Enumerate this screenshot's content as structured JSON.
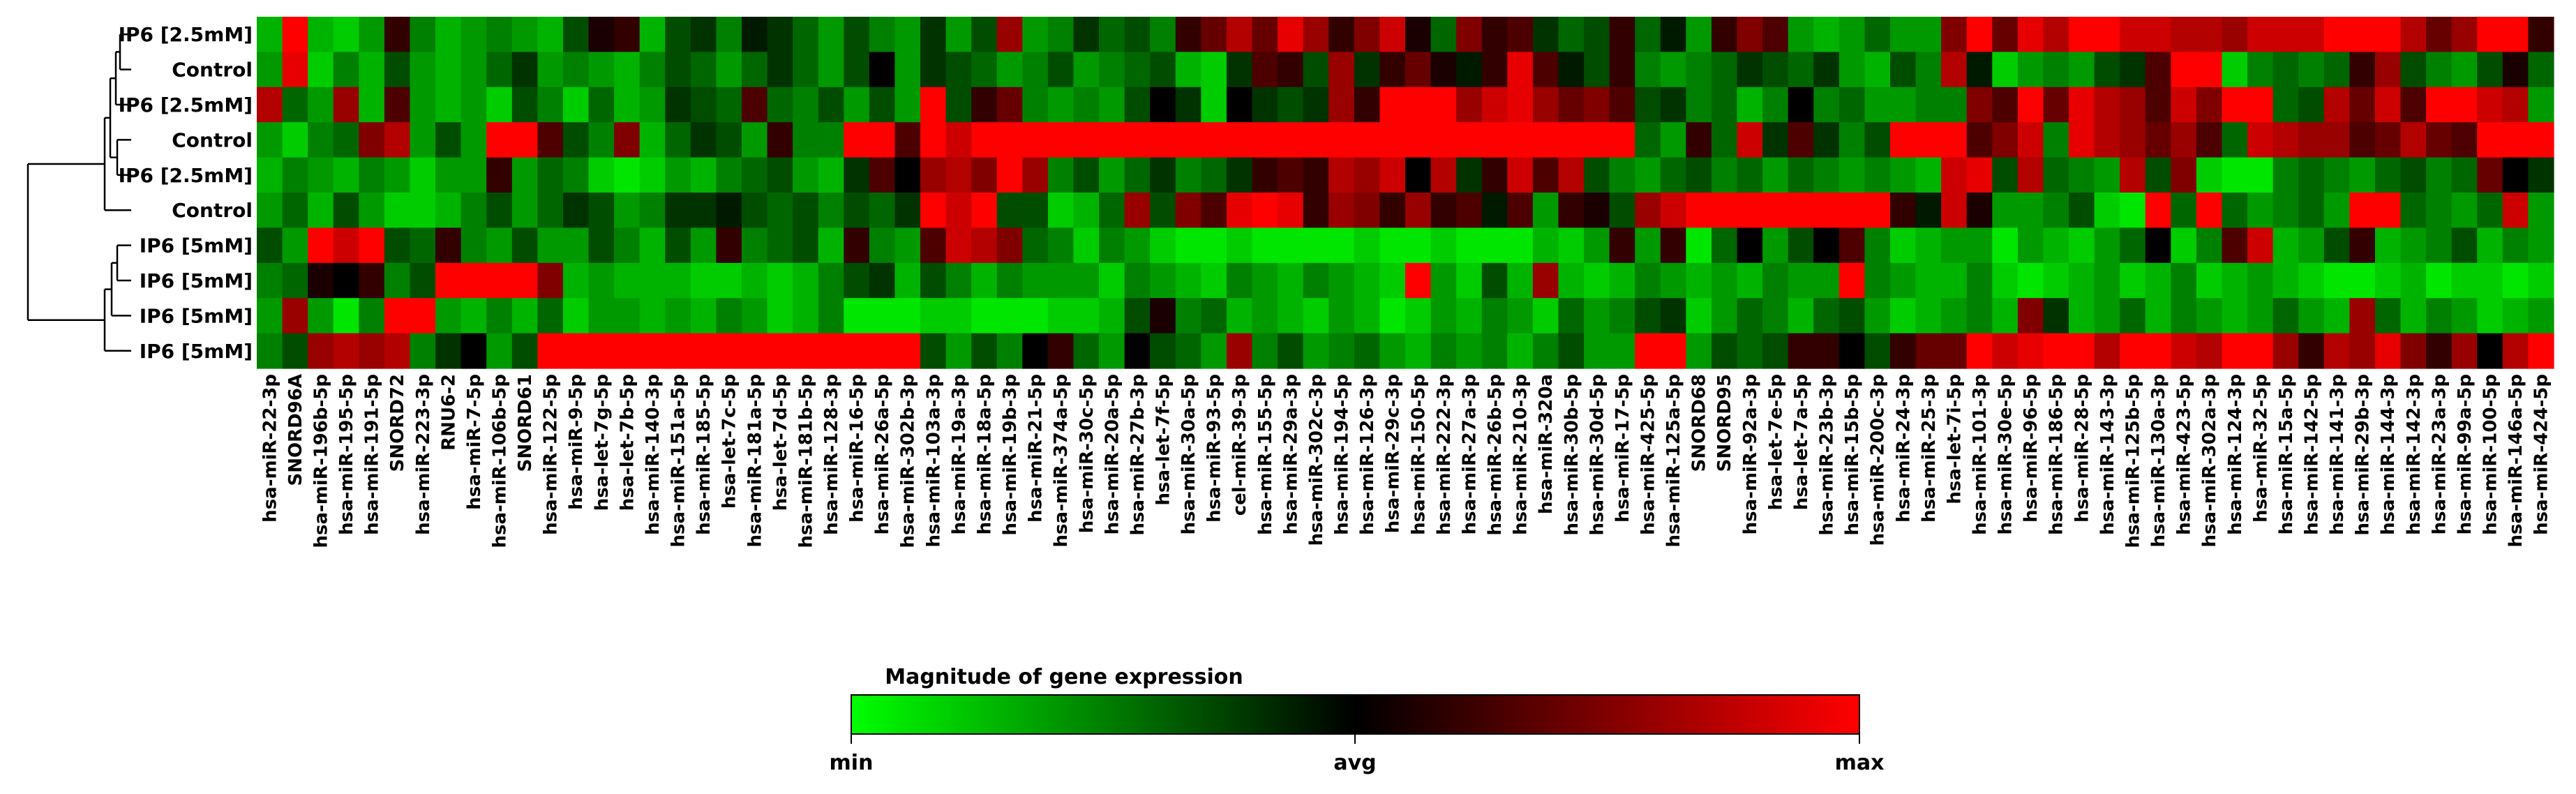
{
  "chart_data": {
    "type": "heatmap",
    "rows": [
      "IP6 [2.5mM]",
      "Control",
      "IP6 [2.5mM]",
      "Control",
      "IP6 [2.5mM]",
      "Control",
      "IP6 [5mM]",
      "IP6 [5mM]",
      "IP6 [5mM]",
      "IP6 [5mM]"
    ],
    "columns": [
      "hsa-miR-22-3p",
      "SNORD96A",
      "hsa-miR-196b-5p",
      "hsa-miR-195-5p",
      "hsa-miR-191-5p",
      "SNORD72",
      "hsa-miR-223-3p",
      "RNU6-2",
      "hsa-miR-7-5p",
      "hsa-miR-106b-5p",
      "SNORD61",
      "hsa-miR-122-5p",
      "hsa-miR-9-5p",
      "hsa-let-7g-5p",
      "hsa-let-7b-5p",
      "hsa-miR-140-3p",
      "hsa-miR-151a-5p",
      "hsa-miR-185-5p",
      "hsa-let-7c-5p",
      "hsa-miR-181a-5p",
      "hsa-let-7d-5p",
      "hsa-miR-181b-5p",
      "hsa-miR-128-3p",
      "hsa-miR-16-5p",
      "hsa-miR-26a-5p",
      "hsa-miR-302b-3p",
      "hsa-miR-103a-3p",
      "hsa-miR-19a-3p",
      "hsa-miR-18a-5p",
      "hsa-miR-19b-3p",
      "hsa-miR-21-5p",
      "hsa-miR-374a-5p",
      "hsa-miR-30c-5p",
      "hsa-miR-20a-5p",
      "hsa-miR-27b-3p",
      "hsa-let-7f-5p",
      "hsa-miR-30a-5p",
      "hsa-miR-93-5p",
      "cel-miR-39-3p",
      "hsa-miR-155-5p",
      "hsa-miR-29a-3p",
      "hsa-miR-302c-3p",
      "hsa-miR-194-5p",
      "hsa-miR-126-3p",
      "hsa-miR-29c-3p",
      "hsa-miR-150-5p",
      "hsa-miR-222-3p",
      "hsa-miR-27a-3p",
      "hsa-miR-26b-5p",
      "hsa-miR-210-3p",
      "hsa-miR-320a",
      "hsa-miR-30b-5p",
      "hsa-miR-30d-5p",
      "hsa-miR-17-5p",
      "hsa-miR-425-5p",
      "hsa-miR-125a-5p",
      "SNORD68",
      "SNORD95",
      "hsa-miR-92a-3p",
      "hsa-let-7e-5p",
      "hsa-let-7a-5p",
      "hsa-miR-23b-3p",
      "hsa-miR-15b-5p",
      "hsa-miR-200c-3p",
      "hsa-miR-24-3p",
      "hsa-miR-25-3p",
      "hsa-let-7i-5p",
      "hsa-miR-101-3p",
      "hsa-miR-30e-5p",
      "hsa-miR-96-5p",
      "hsa-miR-186-5p",
      "hsa-miR-28-5p",
      "hsa-miR-143-3p",
      "hsa-miR-125b-5p",
      "hsa-miR-130a-3p",
      "hsa-miR-423-5p",
      "hsa-miR-302a-3p",
      "hsa-miR-124-3p",
      "hsa-miR-32-5p",
      "hsa-miR-15a-5p",
      "hsa-miR-142-5p",
      "hsa-miR-141-3p",
      "hsa-miR-29b-3p",
      "hsa-miR-144-3p",
      "hsa-miR-142-3p",
      "hsa-miR-23a-3p",
      "hsa-miR-99a-5p",
      "hsa-miR-100-5p",
      "hsa-miR-146a-5p",
      "hsa-miR-424-5p"
    ],
    "values": [
      [
        -0.7,
        1.0,
        -0.7,
        -0.8,
        -0.6,
        0.2,
        -0.5,
        -0.7,
        -0.6,
        -0.5,
        -0.6,
        -0.7,
        -0.3,
        0.1,
        0.2,
        -0.7,
        -0.3,
        -0.2,
        -0.5,
        -0.1,
        -0.2,
        -0.4,
        -0.6,
        -0.3,
        -0.5,
        -0.6,
        -0.2,
        -0.6,
        -0.3,
        0.6,
        -0.6,
        -0.5,
        -0.2,
        -0.4,
        -0.3,
        -0.5,
        0.2,
        0.4,
        0.7,
        0.4,
        0.9,
        0.6,
        0.2,
        0.5,
        0.8,
        0.1,
        -0.4,
        0.5,
        0.2,
        0.3,
        -0.2,
        -0.4,
        -0.3,
        0.2,
        -0.4,
        -0.1,
        -0.6,
        0.2,
        0.5,
        0.3,
        -0.6,
        -0.7,
        -0.6,
        -0.4,
        -0.6,
        -0.6,
        0.5,
        1.0,
        0.4,
        0.9,
        0.7,
        1.0,
        1.0,
        0.8,
        0.8,
        0.7,
        0.7,
        0.6,
        0.8,
        0.8,
        0.8,
        1.0,
        1.0,
        1.0,
        0.7,
        0.4,
        0.6,
        1.0,
        1.0,
        0.2
      ],
      [
        -0.6,
        0.9,
        -0.8,
        -0.5,
        -0.7,
        -0.3,
        -0.6,
        -0.7,
        -0.6,
        -0.4,
        -0.2,
        -0.6,
        -0.5,
        -0.6,
        -0.7,
        -0.5,
        -0.3,
        -0.4,
        -0.6,
        -0.4,
        -0.2,
        -0.4,
        -0.6,
        -0.3,
        0.0,
        -0.6,
        -0.2,
        -0.3,
        -0.4,
        -0.6,
        -0.5,
        -0.3,
        -0.6,
        -0.5,
        -0.4,
        -0.3,
        -0.7,
        -0.8,
        -0.2,
        0.3,
        0.2,
        -0.3,
        0.6,
        -0.2,
        0.2,
        0.4,
        0.1,
        -0.1,
        0.2,
        0.9,
        0.3,
        -0.1,
        -0.3,
        0.2,
        -0.5,
        -0.6,
        -0.5,
        -0.4,
        -0.2,
        -0.3,
        -0.4,
        -0.2,
        -0.6,
        -0.7,
        -0.3,
        -0.5,
        0.7,
        -0.1,
        -0.8,
        -0.6,
        -0.5,
        -0.6,
        -0.3,
        -0.2,
        0.3,
        1.0,
        1.0,
        -0.8,
        -0.5,
        -0.4,
        -0.5,
        -0.4,
        0.2,
        0.6,
        -0.3,
        -0.5,
        -0.6,
        -0.3,
        0.1,
        -0.4
      ],
      [
        0.7,
        -0.4,
        -0.6,
        0.6,
        -0.7,
        0.3,
        -0.6,
        -0.7,
        -0.6,
        -0.8,
        -0.3,
        -0.5,
        -0.8,
        -0.4,
        -0.7,
        -0.6,
        -0.2,
        -0.3,
        -0.4,
        0.3,
        -0.4,
        -0.5,
        -0.3,
        -0.6,
        -0.3,
        -0.6,
        1.0,
        -0.3,
        0.2,
        0.4,
        -0.5,
        -0.6,
        -0.5,
        -0.6,
        -0.3,
        0.0,
        -0.2,
        -0.8,
        0.0,
        -0.2,
        -0.3,
        -0.2,
        0.6,
        0.2,
        1.0,
        1.0,
        1.0,
        0.6,
        0.8,
        0.9,
        0.6,
        0.4,
        0.5,
        0.3,
        -0.3,
        -0.2,
        -0.5,
        -0.4,
        -0.7,
        -0.5,
        0.0,
        -0.5,
        -0.4,
        -0.6,
        -0.6,
        -0.5,
        -0.5,
        0.5,
        0.3,
        1.0,
        0.4,
        0.9,
        0.7,
        0.6,
        0.3,
        0.8,
        0.5,
        1.0,
        1.0,
        -0.4,
        -0.3,
        0.7,
        0.4,
        0.8,
        0.3,
        1.0,
        1.0,
        0.8,
        0.7,
        -0.6
      ],
      [
        -0.6,
        -0.8,
        -0.5,
        -0.4,
        0.5,
        0.7,
        -0.6,
        -0.3,
        -0.6,
        1.0,
        1.0,
        0.3,
        -0.3,
        -0.5,
        0.5,
        -0.7,
        -0.4,
        -0.2,
        -0.3,
        -0.6,
        0.2,
        -0.5,
        -0.5,
        1.0,
        1.0,
        0.3,
        1.0,
        0.8,
        1.0,
        1.0,
        1.0,
        1.0,
        1.0,
        1.0,
        1.0,
        1.0,
        1.0,
        1.0,
        1.0,
        1.0,
        1.0,
        1.0,
        1.0,
        1.0,
        1.0,
        1.0,
        1.0,
        1.0,
        1.0,
        1.0,
        1.0,
        1.0,
        1.0,
        1.0,
        -0.4,
        -0.6,
        0.2,
        -0.4,
        0.8,
        -0.2,
        0.3,
        -0.2,
        -0.5,
        -0.3,
        1.0,
        1.0,
        1.0,
        0.3,
        0.5,
        0.8,
        -0.5,
        0.9,
        0.7,
        0.6,
        0.4,
        0.6,
        0.3,
        -0.4,
        0.8,
        0.7,
        0.6,
        0.6,
        0.3,
        0.4,
        0.7,
        0.4,
        0.3,
        1.0,
        1.0,
        1.0
      ],
      [
        -0.7,
        -0.5,
        -0.6,
        -0.7,
        -0.5,
        -0.6,
        -0.8,
        -0.6,
        -0.6,
        0.2,
        -0.6,
        -0.4,
        -0.5,
        -0.8,
        -0.9,
        -0.8,
        -0.6,
        -0.7,
        -0.5,
        -0.4,
        -0.3,
        -0.6,
        -0.7,
        -0.2,
        0.3,
        0.0,
        0.6,
        0.7,
        0.5,
        1.0,
        0.6,
        -0.5,
        -0.3,
        -0.6,
        -0.4,
        -0.2,
        -0.5,
        -0.4,
        -0.2,
        0.2,
        0.3,
        0.2,
        0.7,
        0.6,
        0.8,
        0.0,
        0.7,
        -0.2,
        0.2,
        0.8,
        0.3,
        0.7,
        -0.3,
        -0.5,
        -0.6,
        -0.4,
        -0.3,
        -0.5,
        -0.4,
        -0.6,
        -0.4,
        -0.5,
        -0.6,
        -0.5,
        -0.6,
        -0.7,
        0.8,
        0.9,
        -0.3,
        0.7,
        -0.4,
        -0.5,
        -0.6,
        0.7,
        -0.3,
        0.5,
        -0.8,
        -0.9,
        -0.9,
        -0.5,
        -0.4,
        -0.5,
        -0.6,
        -0.4,
        -0.3,
        -0.5,
        -0.4,
        0.4,
        0.0,
        -0.2
      ],
      [
        -0.6,
        -0.4,
        -0.7,
        -0.3,
        -0.6,
        -0.8,
        -0.8,
        -0.7,
        -0.5,
        -0.3,
        -0.6,
        -0.4,
        -0.2,
        -0.3,
        -0.6,
        -0.5,
        -0.2,
        -0.2,
        -0.1,
        -0.3,
        -0.4,
        -0.3,
        -0.5,
        -0.3,
        -0.4,
        -0.2,
        1.0,
        0.8,
        1.0,
        -0.3,
        -0.3,
        -0.8,
        -0.7,
        -0.4,
        0.6,
        -0.3,
        0.5,
        0.3,
        0.9,
        1.0,
        0.9,
        0.2,
        0.6,
        0.5,
        0.2,
        0.6,
        0.2,
        0.3,
        -0.1,
        0.3,
        -0.6,
        0.2,
        0.1,
        -0.3,
        0.6,
        0.8,
        1.0,
        1.0,
        1.0,
        1.0,
        1.0,
        1.0,
        1.0,
        1.0,
        0.2,
        -0.1,
        0.8,
        0.1,
        -0.6,
        -0.6,
        -0.5,
        -0.3,
        -0.8,
        -0.9,
        1.0,
        -0.4,
        1.0,
        -0.4,
        -0.6,
        -0.5,
        -0.4,
        -0.6,
        1.0,
        1.0,
        -0.4,
        -0.5,
        -0.6,
        -0.4,
        0.8,
        -0.6
      ],
      [
        -0.3,
        -0.6,
        1.0,
        0.8,
        1.0,
        -0.3,
        -0.4,
        0.2,
        -0.5,
        -0.6,
        -0.3,
        -0.6,
        -0.6,
        -0.3,
        -0.5,
        -0.7,
        -0.3,
        -0.6,
        0.2,
        -0.5,
        -0.4,
        -0.3,
        -0.7,
        0.2,
        -0.5,
        -0.6,
        0.3,
        0.8,
        0.7,
        0.5,
        -0.4,
        -0.5,
        -0.8,
        -0.5,
        -0.6,
        -0.8,
        -0.9,
        -0.9,
        -0.8,
        -0.9,
        -0.9,
        -0.9,
        -0.9,
        -0.8,
        -0.9,
        -0.9,
        -0.8,
        -0.9,
        -0.9,
        -0.9,
        -0.7,
        -0.8,
        -0.6,
        0.2,
        -0.6,
        0.2,
        -0.9,
        -0.4,
        0.0,
        -0.6,
        -0.3,
        0.0,
        0.3,
        -0.5,
        -0.8,
        -0.7,
        -0.6,
        -0.6,
        -0.9,
        -0.6,
        -0.7,
        -0.8,
        -0.6,
        -0.4,
        0.0,
        -0.8,
        -0.5,
        0.3,
        0.8,
        -0.7,
        -0.6,
        -0.3,
        0.2,
        -0.7,
        -0.6,
        -0.5,
        -0.3,
        -0.7,
        -0.5,
        -0.6
      ],
      [
        -0.5,
        -0.4,
        0.1,
        0.0,
        0.2,
        -0.5,
        -0.3,
        1.0,
        1.0,
        1.0,
        1.0,
        0.5,
        -0.7,
        -0.6,
        -0.7,
        -0.7,
        -0.7,
        -0.8,
        -0.8,
        -0.7,
        -0.8,
        -0.7,
        -0.5,
        -0.3,
        -0.2,
        -0.7,
        -0.3,
        -0.5,
        -0.7,
        -0.5,
        -0.6,
        -0.6,
        -0.6,
        -0.8,
        -0.5,
        -0.6,
        -0.7,
        -0.8,
        -0.5,
        -0.6,
        -0.7,
        -0.5,
        -0.6,
        -0.7,
        -0.8,
        1.0,
        -0.6,
        -0.8,
        -0.3,
        -0.7,
        0.6,
        -0.7,
        -0.8,
        -0.7,
        -0.5,
        -0.6,
        -0.7,
        -0.6,
        -0.7,
        -0.5,
        -0.6,
        -0.6,
        1.0,
        -0.5,
        -0.6,
        -0.7,
        -0.7,
        -0.5,
        -0.8,
        -0.9,
        -0.8,
        -0.7,
        -0.6,
        -0.8,
        -0.7,
        -0.5,
        -0.8,
        -0.7,
        -0.6,
        -0.7,
        -0.8,
        -0.9,
        -0.9,
        -0.8,
        -0.7,
        -0.9,
        -0.8,
        -0.8,
        -0.9,
        -0.8
      ],
      [
        -0.6,
        0.6,
        -0.6,
        -0.9,
        -0.5,
        1.0,
        1.0,
        -0.6,
        -0.7,
        -0.5,
        -0.7,
        -0.4,
        -0.8,
        -0.6,
        -0.6,
        -0.7,
        -0.6,
        -0.7,
        -0.5,
        -0.6,
        -0.8,
        -0.7,
        -0.5,
        -0.9,
        -0.9,
        -0.9,
        -0.8,
        -0.8,
        -0.9,
        -0.9,
        -0.9,
        -0.8,
        -0.8,
        -0.7,
        -0.3,
        0.1,
        -0.5,
        -0.4,
        -0.7,
        -0.6,
        -0.7,
        -0.8,
        -0.6,
        -0.7,
        -0.9,
        -0.8,
        -0.6,
        -0.7,
        -0.5,
        -0.6,
        -0.8,
        -0.4,
        -0.6,
        -0.5,
        -0.3,
        -0.2,
        -0.8,
        -0.6,
        -0.4,
        -0.5,
        -0.7,
        -0.4,
        -0.3,
        -0.6,
        -0.8,
        -0.7,
        -0.6,
        -0.5,
        -0.7,
        0.5,
        -0.2,
        -0.7,
        -0.6,
        -0.4,
        -0.7,
        -0.5,
        -0.6,
        -0.7,
        -0.6,
        -0.4,
        -0.6,
        -0.7,
        0.6,
        -0.4,
        -0.7,
        -0.5,
        -0.6,
        -0.8,
        -0.7,
        -0.6
      ],
      [
        -0.5,
        -0.3,
        0.6,
        0.7,
        0.6,
        0.7,
        -0.5,
        -0.2,
        0.0,
        -0.6,
        -0.3,
        1.0,
        1.0,
        1.0,
        1.0,
        1.0,
        1.0,
        1.0,
        1.0,
        1.0,
        1.0,
        1.0,
        1.0,
        1.0,
        1.0,
        1.0,
        -0.3,
        -0.6,
        -0.3,
        -0.5,
        0.0,
        0.2,
        -0.4,
        -0.6,
        0.0,
        -0.3,
        -0.4,
        -0.6,
        0.6,
        -0.5,
        -0.3,
        -0.6,
        -0.5,
        -0.4,
        -0.6,
        -0.7,
        -0.5,
        -0.6,
        -0.5,
        -0.7,
        -0.5,
        -0.3,
        -0.6,
        -0.6,
        1.0,
        1.0,
        -0.6,
        -0.3,
        -0.4,
        -0.3,
        0.2,
        0.2,
        0.0,
        -0.3,
        0.2,
        0.4,
        0.4,
        1.0,
        0.8,
        0.9,
        1.0,
        1.0,
        0.7,
        1.0,
        1.0,
        0.8,
        0.7,
        1.0,
        1.0,
        0.6,
        0.2,
        0.7,
        0.6,
        0.9,
        0.5,
        0.2,
        0.6,
        0.0,
        0.7,
        1.0
      ]
    ],
    "legend": {
      "title": "Magnitude of gene expression",
      "min_label": "min",
      "mid_label": "avg",
      "max_label": "max",
      "colors": {
        "min": "#00ff00",
        "mid": "#000000",
        "max": "#ff0000"
      },
      "placement": "bottom-center"
    },
    "row_dendrogram": true
  }
}
